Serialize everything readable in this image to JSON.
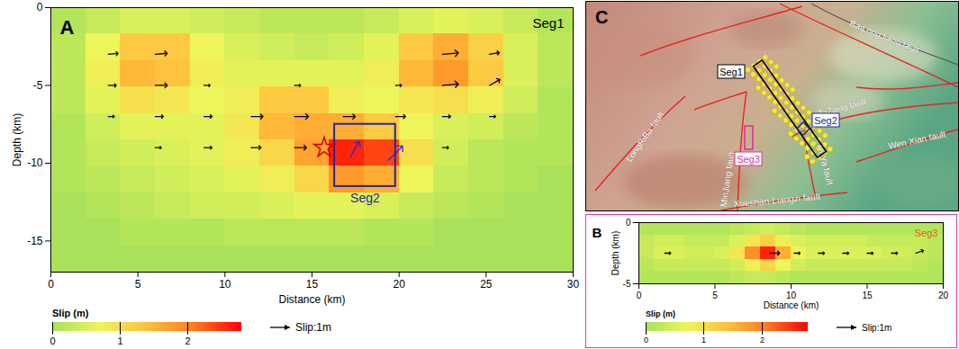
{
  "chart_data": [
    {
      "type": "heatmap",
      "panel": "A",
      "title": "Seg1",
      "x_label": "Distance (km)",
      "y_label": "Depth (km)",
      "xlim": [
        0,
        30
      ],
      "xticks": [
        0,
        5,
        10,
        15,
        20,
        25,
        30
      ],
      "ylim": [
        -17,
        0
      ],
      "yticks": [
        -15,
        -10,
        -5,
        0
      ],
      "cells": {
        "x": [
          1,
          3,
          5,
          7,
          9,
          11,
          13,
          15,
          17,
          19,
          21,
          23,
          25,
          27,
          29
        ],
        "y": [
          -0.85,
          -2.55,
          -4.25,
          -5.95,
          -7.65,
          -9.35,
          -11.05,
          -12.75,
          -14.45,
          -16.15
        ],
        "values": [
          [
            0.1,
            0.3,
            0.5,
            0.5,
            0.4,
            0.3,
            0.2,
            0.2,
            0.2,
            0.3,
            0.5,
            0.6,
            0.5,
            0.3,
            0.1
          ],
          [
            0.2,
            0.7,
            1.3,
            1.3,
            0.7,
            0.5,
            0.4,
            0.3,
            0.4,
            0.6,
            1.3,
            1.6,
            1.2,
            0.5,
            0.2
          ],
          [
            0.2,
            0.8,
            1.5,
            1.4,
            0.8,
            0.6,
            0.6,
            0.6,
            0.6,
            0.8,
            1.5,
            1.8,
            1.3,
            0.5,
            0.2
          ],
          [
            0.2,
            0.6,
            1.0,
            0.9,
            0.7,
            0.8,
            1.3,
            1.3,
            0.8,
            0.7,
            0.9,
            1.0,
            0.8,
            0.4,
            0.1
          ],
          [
            0.1,
            0.4,
            0.6,
            0.6,
            0.6,
            0.9,
            1.5,
            1.6,
            1.6,
            1.3,
            0.7,
            0.5,
            0.4,
            0.2,
            0.1
          ],
          [
            0.1,
            0.3,
            0.4,
            0.5,
            0.6,
            0.8,
            1.1,
            1.7,
            2.6,
            2.4,
            1.0,
            0.4,
            0.2,
            0.1,
            0.1
          ],
          [
            0.1,
            0.2,
            0.3,
            0.4,
            0.5,
            0.6,
            0.8,
            1.1,
            1.8,
            1.6,
            0.7,
            0.3,
            0.2,
            0.1,
            0.0
          ],
          [
            0.0,
            0.1,
            0.2,
            0.3,
            0.4,
            0.4,
            0.5,
            0.6,
            0.6,
            0.5,
            0.3,
            0.2,
            0.1,
            0.0,
            0.0
          ],
          [
            0.0,
            0.0,
            0.1,
            0.1,
            0.1,
            0.2,
            0.2,
            0.2,
            0.2,
            0.1,
            0.1,
            0.0,
            0.0,
            0.0,
            0.0
          ],
          [
            0.0,
            0.0,
            0.0,
            0.0,
            0.0,
            0.0,
            0.0,
            0.0,
            0.0,
            0.0,
            0.0,
            0.0,
            0.0,
            0.0,
            0.0
          ]
        ]
      },
      "colorbar": {
        "label": "Slip (m)",
        "range": [
          0,
          2.8
        ],
        "ticks": [
          0,
          1,
          2
        ]
      },
      "arrows": [
        {
          "color": "#000000",
          "vectors": [
            {
              "x": 3.3,
              "y": -3,
              "slip": 0.5,
              "rake": 5
            },
            {
              "x": 6,
              "y": -3,
              "slip": 0.6,
              "rake": 5
            },
            {
              "x": 22.5,
              "y": -3,
              "slip": 0.8,
              "rake": 5
            },
            {
              "x": 25.2,
              "y": -3,
              "slip": 0.5,
              "rake": 10
            },
            {
              "x": 3.3,
              "y": -5,
              "slip": 0.4,
              "rake": 0
            },
            {
              "x": 6,
              "y": -5,
              "slip": 0.6,
              "rake": 0
            },
            {
              "x": 8.8,
              "y": -5,
              "slip": 0.3,
              "rake": 0
            },
            {
              "x": 14,
              "y": -5,
              "slip": 0.3,
              "rake": 0
            },
            {
              "x": 19.8,
              "y": -5,
              "slip": 0.3,
              "rake": 0
            },
            {
              "x": 22.5,
              "y": -5,
              "slip": 0.8,
              "rake": 5
            },
            {
              "x": 25.2,
              "y": -5,
              "slip": 0.6,
              "rake": 30
            },
            {
              "x": 3.3,
              "y": -7,
              "slip": 0.3,
              "rake": 0
            },
            {
              "x": 6,
              "y": -7,
              "slip": 0.4,
              "rake": 0
            },
            {
              "x": 8.8,
              "y": -7,
              "slip": 0.4,
              "rake": 0
            },
            {
              "x": 11.5,
              "y": -7,
              "slip": 0.6,
              "rake": 0
            },
            {
              "x": 14,
              "y": -7,
              "slip": 0.7,
              "rake": 0
            },
            {
              "x": 16.8,
              "y": -7,
              "slip": 0.6,
              "rake": 0
            },
            {
              "x": 19.8,
              "y": -7,
              "slip": 0.5,
              "rake": 0
            },
            {
              "x": 22.5,
              "y": -7,
              "slip": 0.4,
              "rake": 0
            },
            {
              "x": 25.2,
              "y": -7,
              "slip": 0.3,
              "rake": 0
            },
            {
              "x": 6,
              "y": -9,
              "slip": 0.3,
              "rake": 0
            },
            {
              "x": 8.8,
              "y": -9,
              "slip": 0.4,
              "rake": 0
            },
            {
              "x": 11.5,
              "y": -9,
              "slip": 0.5,
              "rake": 0
            },
            {
              "x": 14,
              "y": -9,
              "slip": 0.6,
              "rake": 0
            },
            {
              "x": 22.5,
              "y": -9,
              "slip": 0.3,
              "rake": 0
            }
          ]
        },
        {
          "color": "#2a2ad8",
          "vectors": [
            {
              "x": 17.2,
              "y": -9.6,
              "slip": 0.9,
              "rake": 60
            },
            {
              "x": 19.4,
              "y": -9.8,
              "slip": 1.0,
              "rake": 45
            }
          ]
        }
      ],
      "arrow_key": {
        "label": "Slip:1m",
        "value": 1
      },
      "hypocenter": {
        "x": 15.7,
        "y": -9,
        "marker": "star",
        "color": "#d00000"
      },
      "box": {
        "label": "Seg2",
        "x1": 16.3,
        "x2": 19.8,
        "y1": -11.5,
        "y2": -7.5,
        "color": "#1f2a9c"
      }
    },
    {
      "type": "heatmap",
      "panel": "B",
      "title": "Seg3",
      "x_label": "Distance (km)",
      "y_label": "Depth (km)",
      "xlim": [
        0,
        20
      ],
      "xticks": [
        0,
        5,
        10,
        15,
        20
      ],
      "ylim": [
        -5,
        0
      ],
      "yticks": [
        -5,
        0
      ],
      "cells": {
        "x": [
          0.5,
          1.5,
          2.5,
          3.5,
          4.5,
          5.5,
          6.5,
          7.5,
          8.5,
          9.5,
          10.5,
          11.5,
          12.5,
          13.5,
          14.5,
          15.5,
          16.5,
          17.5,
          18.5,
          19.5
        ],
        "y": [
          -0.5,
          -1.5,
          -2.5,
          -3.5,
          -4.5
        ],
        "values": [
          [
            0.1,
            0.1,
            0.1,
            0.1,
            0.1,
            0.1,
            0.2,
            0.3,
            0.4,
            0.3,
            0.2,
            0.1,
            0.1,
            0.1,
            0.1,
            0.1,
            0.1,
            0.1,
            0.1,
            0.1
          ],
          [
            0.3,
            0.4,
            0.4,
            0.3,
            0.3,
            0.3,
            0.5,
            0.9,
            1.2,
            0.8,
            0.5,
            0.4,
            0.4,
            0.4,
            0.4,
            0.3,
            0.3,
            0.3,
            0.3,
            0.2
          ],
          [
            0.3,
            0.5,
            0.5,
            0.4,
            0.4,
            0.5,
            0.9,
            1.9,
            2.6,
            1.6,
            0.7,
            0.5,
            0.5,
            0.5,
            0.5,
            0.5,
            0.4,
            0.4,
            0.3,
            0.2
          ],
          [
            0.2,
            0.3,
            0.3,
            0.3,
            0.3,
            0.3,
            0.4,
            0.8,
            1.1,
            0.7,
            0.4,
            0.3,
            0.3,
            0.3,
            0.3,
            0.3,
            0.3,
            0.3,
            0.2,
            0.1
          ],
          [
            0.1,
            0.1,
            0.1,
            0.1,
            0.1,
            0.1,
            0.2,
            0.3,
            0.3,
            0.2,
            0.1,
            0.1,
            0.1,
            0.1,
            0.1,
            0.1,
            0.1,
            0.1,
            0.1,
            0.1
          ]
        ]
      },
      "colorbar": {
        "label": "Slip (m)",
        "range": [
          0,
          2.8
        ],
        "ticks": [
          0,
          1,
          2
        ]
      },
      "arrows": [
        {
          "color": "#000000",
          "vectors": [
            {
              "x": 1.7,
              "y": -2.5,
              "slip": 0.3,
              "rake": 0
            },
            {
              "x": 8.6,
              "y": -2.5,
              "slip": 0.5,
              "rake": 0
            },
            {
              "x": 10.2,
              "y": -2.5,
              "slip": 0.3,
              "rake": 0
            },
            {
              "x": 11.8,
              "y": -2.5,
              "slip": 0.3,
              "rake": 0
            },
            {
              "x": 13.4,
              "y": -2.5,
              "slip": 0.3,
              "rake": 0
            },
            {
              "x": 15,
              "y": -2.5,
              "slip": 0.3,
              "rake": 0
            },
            {
              "x": 16.6,
              "y": -2.5,
              "slip": 0.3,
              "rake": 0
            },
            {
              "x": 18.2,
              "y": -2.5,
              "slip": 0.4,
              "rake": 20
            }
          ]
        }
      ],
      "arrow_key": {
        "label": "Slip:1m",
        "value": 1
      }
    }
  ],
  "map": {
    "panel": "C",
    "faults": [
      "BaiLongJiang fault",
      "TaZang fault",
      "Wen Xian fault",
      "HuYa fault",
      "MinJiang fault",
      "LongRiBa fault",
      "Xueshan-Liangzi fault"
    ],
    "segments": [
      "Seg1",
      "Seg2",
      "Seg3"
    ]
  }
}
